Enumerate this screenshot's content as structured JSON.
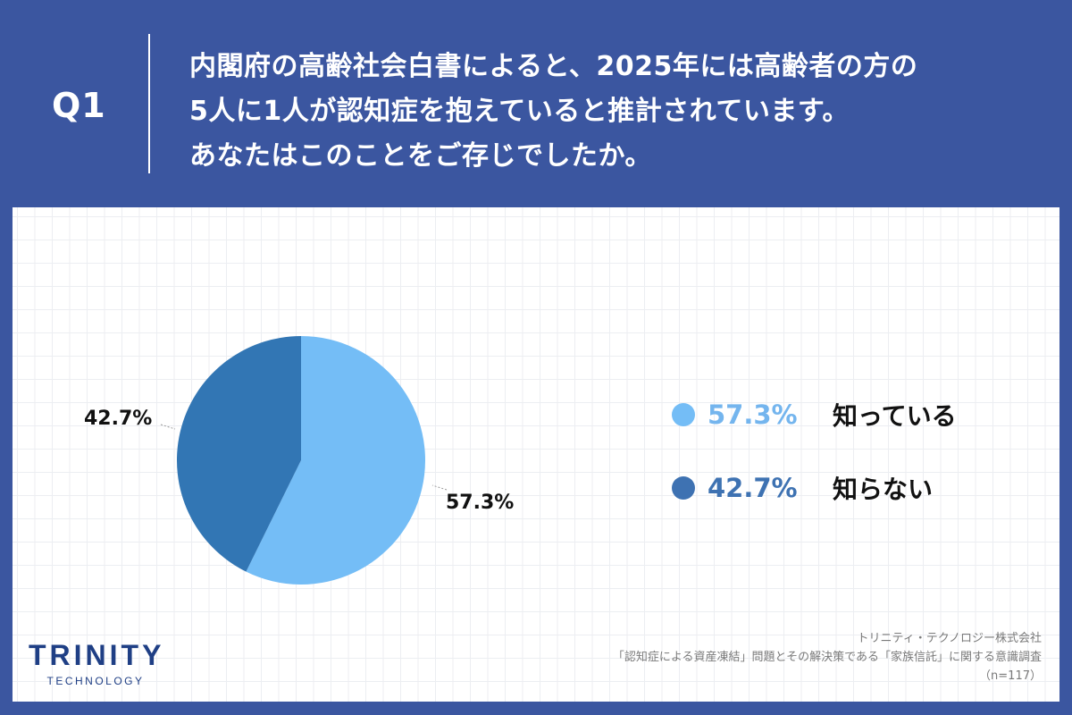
{
  "header": {
    "question_label": "Q1",
    "question_lines": [
      "内閣府の高齢社会白書によると、2025年には高齢者の方の",
      "5人に1人が認知症を抱えていると推計されています。",
      "あなたはこのことをご存じでしたか。"
    ]
  },
  "colors": {
    "background": "#3b56a0",
    "slice_know": "#74bdf6",
    "slice_dont_know": "#3276b4",
    "legend_know_text": "#74b5ee",
    "legend_dont_know_text": "#3e72b2"
  },
  "chart_data": {
    "type": "pie",
    "title": "内閣府の高齢社会白書によると、2025年には高齢者の方の5人に1人が認知症を抱えていると推計されています。あなたはこのことをご存じでしたか。",
    "categories": [
      "知っている",
      "知らない"
    ],
    "values": [
      57.3,
      42.7
    ],
    "unit": "%",
    "data_labels": [
      "57.3%",
      "42.7%"
    ],
    "start_angle": "12 o'clock, clockwise",
    "legend_position": "right",
    "n": 117
  },
  "pie_labels": {
    "know": "57.3%",
    "dont_know": "42.7%"
  },
  "legend": [
    {
      "pct": "57.3%",
      "label": "知っている"
    },
    {
      "pct": "42.7%",
      "label": "知らない"
    }
  ],
  "logo": {
    "main": "TRINITY",
    "sub": "TECHNOLOGY"
  },
  "footer": {
    "company": "トリニティ・テクノロジー株式会社",
    "survey": "「認知症による資産凍結」問題とその解決策である「家族信託」に関する意識調査",
    "sample": "（n=117）"
  }
}
